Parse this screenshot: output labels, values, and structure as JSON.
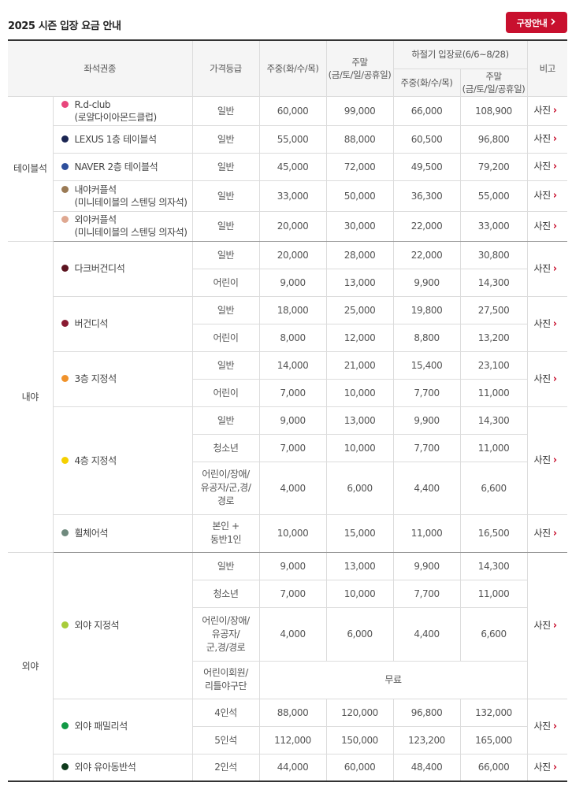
{
  "header": {
    "title": "2025 시즌 입장 요금 안내",
    "guide_button": "구장안내",
    "guide_icon": "chevron-right-icon"
  },
  "columns": {
    "seat": "좌석권종",
    "grade": "가격등급",
    "weekday": "주중(화/수/목)",
    "weekend_line1": "주말",
    "weekend_line2": "(금/토/일/공휴일)",
    "summer": "하절기 입장료(6/6~8/28)",
    "summer_weekday": "주중(화/수/목)",
    "summer_weekend_line1": "주말",
    "summer_weekend_line2": "(금/토/일/공휴일)",
    "note": "비고"
  },
  "zones": {
    "table": "테이블석",
    "infield": "내야",
    "outfield": "외야"
  },
  "photo_label": "사진",
  "seats": [
    {
      "name1": "R.d-club",
      "name2": "(로얄다이아몬드클럽)",
      "color": "#e8467c",
      "rows": [
        {
          "grade": "일반",
          "wd": "60,000",
          "we": "99,000",
          "swd": "66,000",
          "swe": "108,900"
        }
      ]
    },
    {
      "name1": "LEXUS 1층 테이블석",
      "color": "#1b2552",
      "rows": [
        {
          "grade": "일반",
          "wd": "55,000",
          "we": "88,000",
          "swd": "60,500",
          "swe": "96,800"
        }
      ]
    },
    {
      "name1": "NAVER 2층 테이블석",
      "color": "#2e4f9c",
      "rows": [
        {
          "grade": "일반",
          "wd": "45,000",
          "we": "72,000",
          "swd": "49,500",
          "swe": "79,200"
        }
      ]
    },
    {
      "name1": "내야커플석",
      "name2": "(미니테이블의 스텐딩 의자석)",
      "color": "#9a7a55",
      "rows": [
        {
          "grade": "일반",
          "wd": "33,000",
          "we": "50,000",
          "swd": "36,300",
          "swe": "55,000"
        }
      ]
    },
    {
      "name1": "외야커플석",
      "name2": "(미니테이블의 스텐딩 의자석)",
      "color": "#dfa891",
      "rows": [
        {
          "grade": "일반",
          "wd": "20,000",
          "we": "30,000",
          "swd": "22,000",
          "swe": "33,000"
        }
      ]
    },
    {
      "name1": "다크버건디석",
      "color": "#5c1420",
      "rows": [
        {
          "grade": "일반",
          "wd": "20,000",
          "we": "28,000",
          "swd": "22,000",
          "swe": "30,800"
        },
        {
          "grade": "어린이",
          "wd": "9,000",
          "we": "13,000",
          "swd": "9,900",
          "swe": "14,300"
        }
      ]
    },
    {
      "name1": "버건디석",
      "color": "#8a1a32",
      "rows": [
        {
          "grade": "일반",
          "wd": "18,000",
          "we": "25,000",
          "swd": "19,800",
          "swe": "27,500"
        },
        {
          "grade": "어린이",
          "wd": "8,000",
          "we": "12,000",
          "swd": "8,800",
          "swe": "13,200"
        }
      ]
    },
    {
      "name1": "3층 지정석",
      "color": "#f0922b",
      "rows": [
        {
          "grade": "일반",
          "wd": "14,000",
          "we": "21,000",
          "swd": "15,400",
          "swe": "23,100"
        },
        {
          "grade": "어린이",
          "wd": "7,000",
          "we": "10,000",
          "swd": "7,700",
          "swe": "11,000"
        }
      ]
    },
    {
      "name1": "4층 지정석",
      "color": "#f5d000",
      "rows": [
        {
          "grade": "일반",
          "wd": "9,000",
          "we": "13,000",
          "swd": "9,900",
          "swe": "14,300"
        },
        {
          "grade": "청소년",
          "wd": "7,000",
          "we": "10,000",
          "swd": "7,700",
          "swe": "11,000"
        },
        {
          "grade1": "어린이/장애/",
          "grade2": "유공자/군,경/",
          "grade3": "경로",
          "wd": "4,000",
          "we": "6,000",
          "swd": "4,400",
          "swe": "6,600"
        }
      ]
    },
    {
      "name1": "휠체어석",
      "color": "#6f8a7e",
      "rows": [
        {
          "grade1": "본인 +",
          "grade2": "동반1인",
          "wd": "10,000",
          "we": "15,000",
          "swd": "11,000",
          "swe": "16,500"
        }
      ]
    },
    {
      "name1": "외야 지정석",
      "color": "#a8cc3a",
      "rows": [
        {
          "grade": "일반",
          "wd": "9,000",
          "we": "13,000",
          "swd": "9,900",
          "swe": "14,300"
        },
        {
          "grade": "청소년",
          "wd": "7,000",
          "we": "10,000",
          "swd": "7,700",
          "swe": "11,000"
        },
        {
          "grade1": "어린이/장애/",
          "grade2": "유공자/",
          "grade3": "군,경/경로",
          "wd": "4,000",
          "we": "6,000",
          "swd": "4,400",
          "swe": "6,600"
        },
        {
          "grade1": "어린이회원/",
          "grade2": "리틀야구단",
          "free": "무료"
        }
      ]
    },
    {
      "name1": "외야 패밀리석",
      "color": "#119945",
      "rows": [
        {
          "grade": "4인석",
          "wd": "88,000",
          "we": "120,000",
          "swd": "96,800",
          "swe": "132,000"
        },
        {
          "grade": "5인석",
          "wd": "112,000",
          "we": "150,000",
          "swd": "123,200",
          "swe": "165,000"
        }
      ]
    },
    {
      "name1": "외야 유아동반석",
      "color": "#0f3a1c",
      "rows": [
        {
          "grade": "2인석",
          "wd": "44,000",
          "we": "60,000",
          "swd": "48,400",
          "swe": "66,000"
        }
      ]
    }
  ]
}
